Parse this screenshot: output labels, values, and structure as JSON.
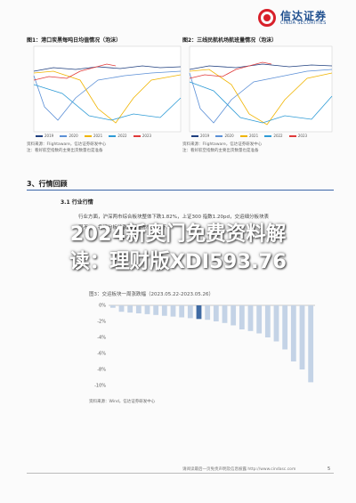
{
  "header": {
    "logo_cn": "信达证券",
    "logo_en": "CINDA SECURITIES"
  },
  "fig1": {
    "title": "图1：港口炭黑每吨日均值情况（泡沫）",
    "legend": [
      "2019",
      "2020",
      "2021",
      "2022",
      "2023"
    ],
    "source": "资料来源：Flightaware，信达证券研发中心",
    "note": "注：看好航空指数的主要出货数量也是准备"
  },
  "fig2": {
    "title": "图2：三线民航机场航班量情况（泡沫）",
    "legend": [
      "2019",
      "2020",
      "2021",
      "2022",
      "2023"
    ],
    "source": "资料来源：Flightaware，信达证券研发中心",
    "note": "注：看好航空指数的主要出货数量也是准备"
  },
  "colors": {
    "s2019": "#1f3f7f",
    "s2020": "#5b8fd6",
    "s2021": "#f0b400",
    "s2022": "#2e9bd6",
    "s2023": "#e03a3a",
    "bar": "#c4d3e6",
    "bar_dark": "#3f6aa3"
  },
  "section": {
    "title": "3、行情回顾",
    "sub_title": "3.1 行业行情"
  },
  "body_text": [
    "行业方面，沪深两市综合板块整体下跌1.82%，上证300 指数1.20pd，交运细分板块表",
    "现不一，各细分板块涨跌幅分布情况如下。"
  ],
  "banner": {
    "line1": "2024新奥门免费资料解",
    "line2": "读：理财版XDI593.76"
  },
  "bar_chart_title": "图3：交运板块一周涨跌幅（2023.05.22-2023.05.26）",
  "bar_source": "资料来源：Wind，信达证券研发中心",
  "chart_data": {
    "type": "bar",
    "yticks": [
      "0%",
      "-2%",
      "-4%",
      "-6%",
      "-8%",
      "-10%"
    ],
    "ylim": [
      -10,
      0
    ],
    "values": [
      -0.3,
      -0.8,
      -0.9,
      -1.0,
      -1.1,
      -1.2,
      -1.3,
      -1.4,
      -1.5,
      -1.6,
      -1.7,
      -1.8,
      -2.0,
      -2.2,
      -2.5,
      -3.0,
      -3.2,
      -3.5,
      -4.0,
      -4.5,
      -5.5,
      -7.0,
      -8.0,
      -9.6
    ],
    "highlight": [
      10
    ]
  },
  "footer": {
    "text": "请阅读最后一页免责声明及信息披露 http://www.cindasc.com",
    "page": "5"
  }
}
